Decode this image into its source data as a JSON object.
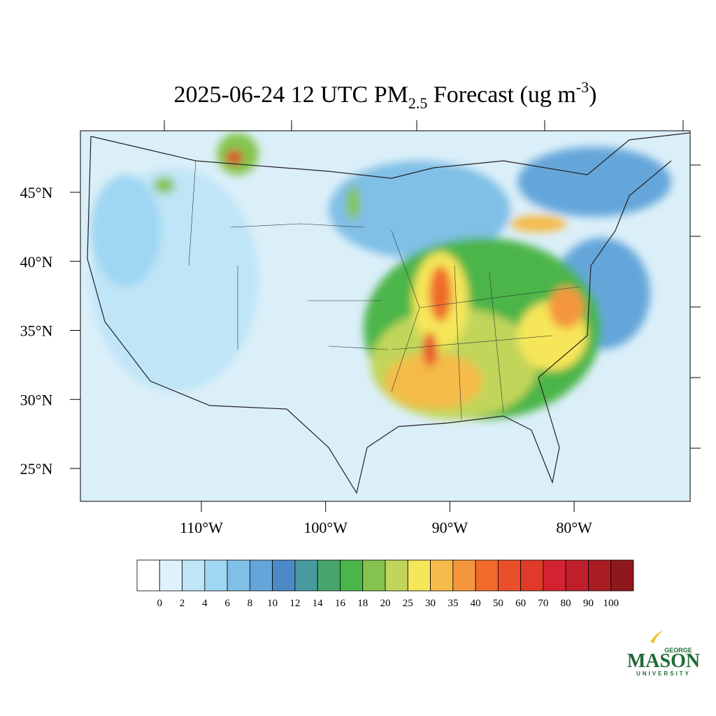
{
  "title": {
    "prefix": "2025-06-24 12 UTC PM",
    "subscript": "2.5",
    "middle": " Forecast (ug m",
    "superscript": "-3",
    "suffix": ")"
  },
  "map": {
    "lat_ticks": [
      {
        "value": 45,
        "label": "45°N"
      },
      {
        "value": 40,
        "label": "40°N"
      },
      {
        "value": 35,
        "label": "35°N"
      },
      {
        "value": 30,
        "label": "30°N"
      },
      {
        "value": 25,
        "label": "25°N"
      }
    ],
    "lon_ticks": [
      {
        "value": -110,
        "label": "110°W"
      },
      {
        "value": -100,
        "label": "100°W"
      },
      {
        "value": -90,
        "label": "90°W"
      },
      {
        "value": -80,
        "label": "80°W"
      }
    ]
  },
  "colorbar": {
    "levels": [
      0,
      2,
      4,
      6,
      8,
      10,
      12,
      14,
      16,
      18,
      20,
      25,
      30,
      35,
      40,
      50,
      60,
      70,
      80,
      90,
      100
    ],
    "colors": [
      "#ffffff",
      "#dff2fb",
      "#bfe5f7",
      "#9fd6f2",
      "#80bfe6",
      "#65a6da",
      "#4b8ac7",
      "#479a9d",
      "#46a56b",
      "#4cb549",
      "#84c44e",
      "#c1d55a",
      "#f6e65a",
      "#f5bb4a",
      "#f4963c",
      "#f06a2c",
      "#e9502a",
      "#df3b28",
      "#d42330",
      "#be1f2b",
      "#a91c24",
      "#8f181c"
    ]
  },
  "logo": {
    "top": "GEORGE",
    "main": "MASON",
    "bottom": "UNIVERSITY"
  }
}
